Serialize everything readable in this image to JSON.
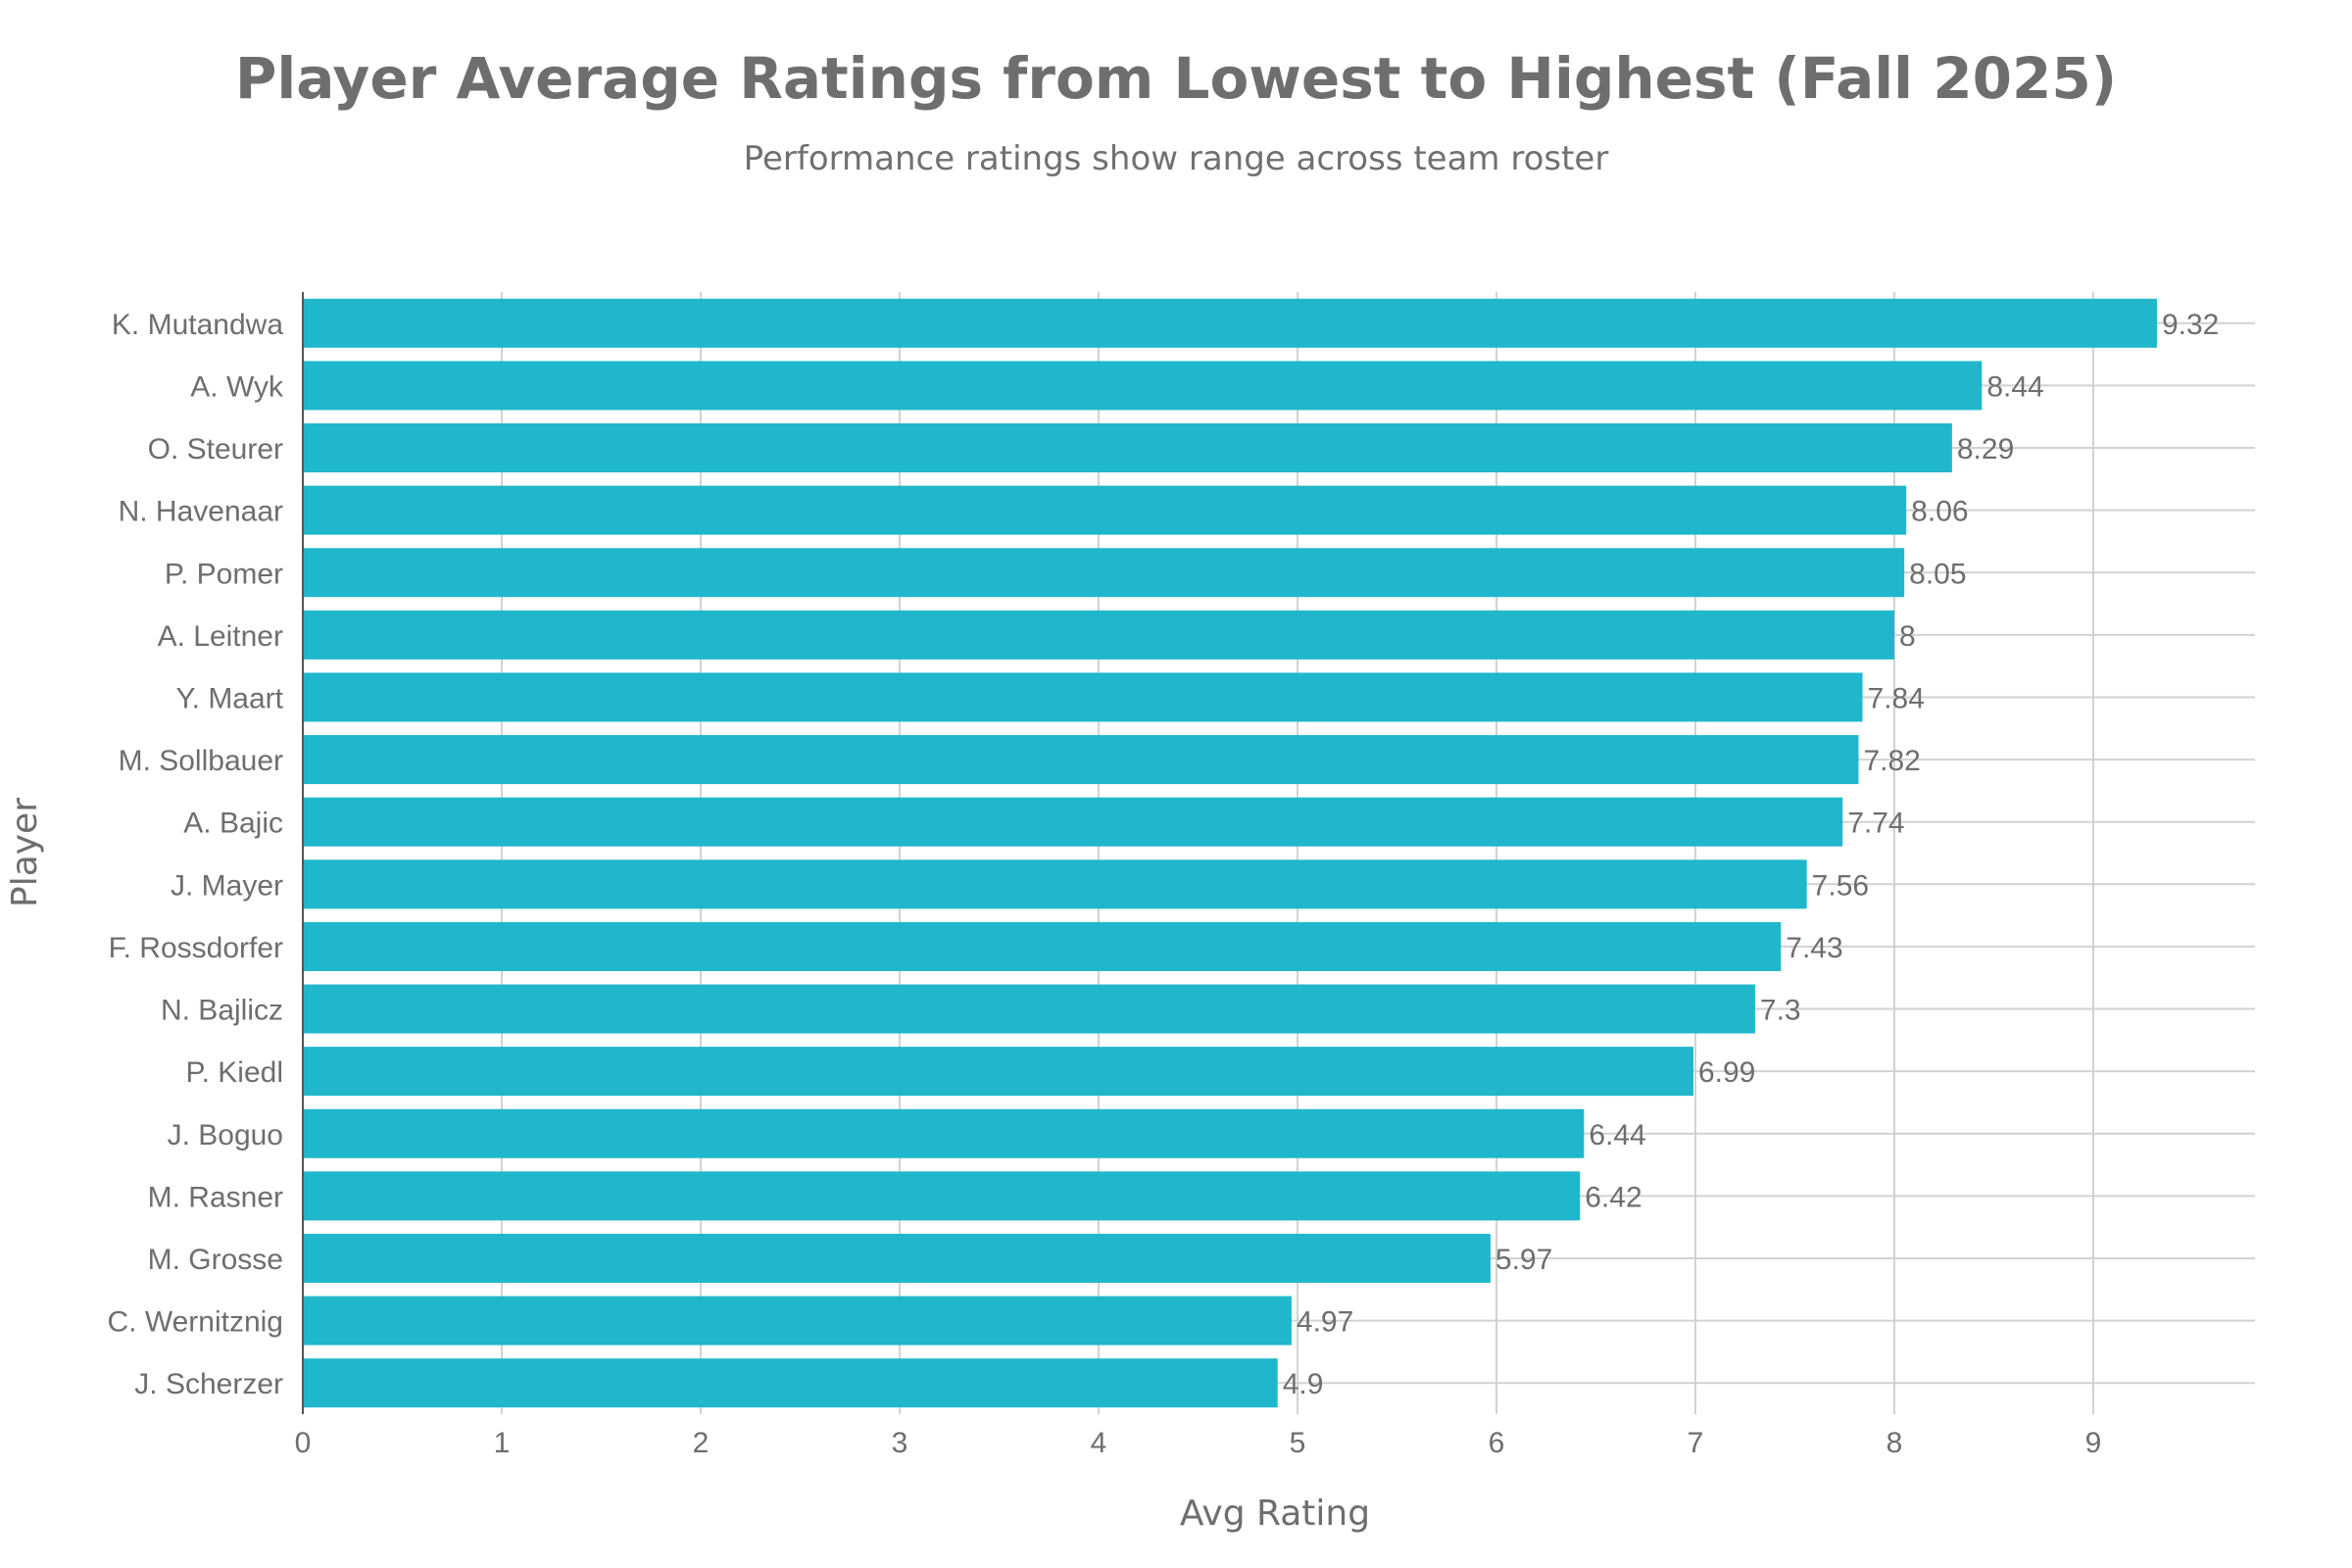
{
  "chart_data": {
    "type": "bar",
    "orientation": "horizontal",
    "title": "Player Average Ratings from Lowest to Highest (Fall 2025)",
    "subtitle": "Performance ratings show range across team roster",
    "xlabel": "Avg Rating",
    "ylabel": "Player",
    "xlim": [
      0,
      9.8
    ],
    "xticks": [
      "0",
      "1",
      "2",
      "3",
      "4",
      "5",
      "6",
      "7",
      "8",
      "9"
    ],
    "grid": true,
    "bar_color": "#20b7cc",
    "categories": [
      "K. Mutandwa",
      "A. Wyk",
      "O. Steurer",
      "N. Havenaar",
      "P. Pomer",
      "A. Leitner",
      "Y. Maart",
      "M. Sollbauer",
      "A. Bajic",
      "J. Mayer",
      "F. Rossdorfer",
      "N. Bajlicz",
      "P. Kiedl",
      "J. Boguo",
      "M. Rasner",
      "M. Grosse",
      "C. Wernitznig",
      "J. Scherzer"
    ],
    "values": [
      9.32,
      8.44,
      8.29,
      8.06,
      8.05,
      8,
      7.84,
      7.82,
      7.74,
      7.56,
      7.43,
      7.3,
      6.99,
      6.44,
      6.42,
      5.97,
      4.97,
      4.9
    ],
    "value_labels": [
      "9.32",
      "8.44",
      "8.29",
      "8.06",
      "8.05",
      "8",
      "7.84",
      "7.82",
      "7.74",
      "7.56",
      "7.43",
      "7.3",
      "6.99",
      "6.44",
      "6.42",
      "5.97",
      "4.97",
      "4.9"
    ]
  }
}
